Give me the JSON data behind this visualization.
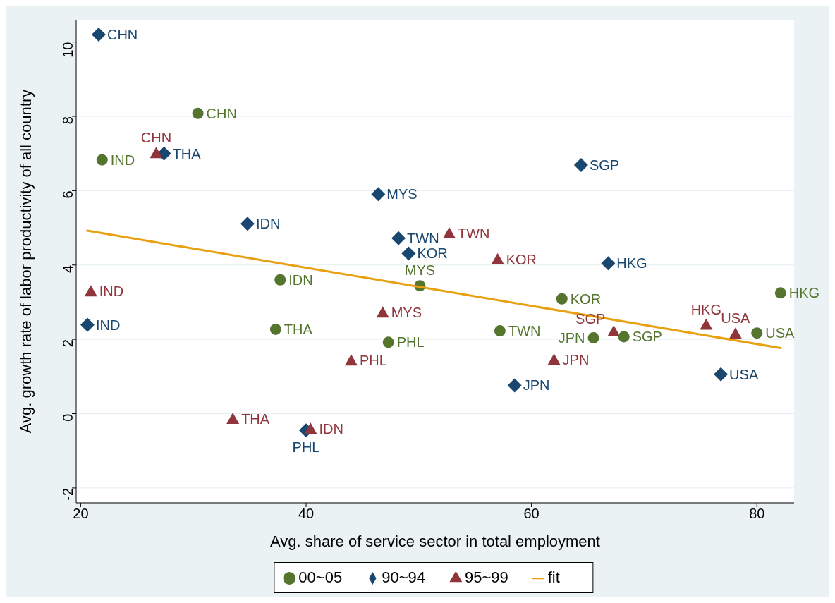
{
  "chart_data": {
    "type": "scatter",
    "xlabel": "Avg. share of service sector in total employment",
    "ylabel": "Avg. growth rate of labor productivity of all country",
    "xlim": [
      19.6,
      83.3
    ],
    "ylim": [
      -2.4,
      10.6
    ],
    "xticks": [
      20,
      40,
      60,
      80
    ],
    "yticks": [
      -2,
      0,
      2,
      4,
      6,
      8,
      10
    ],
    "grid": "y",
    "legend": "bottom",
    "series": [
      {
        "name": "90~94",
        "color": "#1a476f",
        "marker": "diamond",
        "x": [
          21.6,
          27.4,
          46.4,
          34.8,
          48.2,
          49.1,
          64.4,
          66.8,
          20.6,
          58.5,
          76.8,
          40.0
        ],
        "values": [
          10.2,
          7.0,
          5.91,
          5.11,
          4.72,
          4.31,
          6.69,
          4.05,
          2.39,
          0.76,
          1.06,
          -0.45
        ],
        "value_labels": [
          "CHN",
          "THA",
          "MYS",
          "IDN",
          "TWN",
          "KOR",
          "SGP",
          "HKG",
          "IND",
          "JPN",
          "USA",
          "PHL"
        ]
      },
      {
        "name": "95~99",
        "color": "#90353b",
        "marker": "triangle",
        "x": [
          26.7,
          20.9,
          52.7,
          57.0,
          46.8,
          44.0,
          33.5,
          40.4,
          62.0,
          67.3,
          75.5,
          78.1
        ],
        "values": [
          7.01,
          3.29,
          4.85,
          4.15,
          2.72,
          1.43,
          -0.14,
          -0.41,
          1.45,
          2.21,
          2.39,
          2.15
        ],
        "value_labels": [
          "CHN",
          "IND",
          "TWN",
          "KOR",
          "MYS",
          "PHL",
          "THA",
          "IDN",
          "JPN",
          "SGP",
          "HKG",
          "USA"
        ]
      },
      {
        "name": "00~05",
        "color": "#55752f",
        "marker": "circle",
        "x": [
          30.4,
          21.9,
          37.7,
          50.1,
          37.3,
          47.3,
          57.2,
          62.7,
          65.5,
          68.2,
          80.0,
          82.1
        ],
        "values": [
          8.08,
          6.83,
          3.6,
          3.44,
          2.27,
          1.92,
          2.23,
          3.09,
          2.04,
          2.07,
          2.17,
          3.25
        ],
        "value_labels": [
          "CHN",
          "IND",
          "IDN",
          "MYS",
          "THA",
          "PHL",
          "TWN",
          "KOR",
          "JPN",
          "SGP",
          "USA",
          "HKG"
        ]
      },
      {
        "name": "fit",
        "type": "line",
        "color": "#e8a010",
        "marker": "none",
        "x": [
          20.5,
          82.2
        ],
        "values": [
          4.93,
          1.76
        ]
      }
    ]
  }
}
